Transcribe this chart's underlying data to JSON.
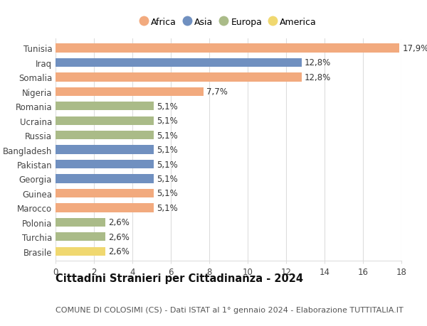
{
  "countries": [
    "Tunisia",
    "Iraq",
    "Somalia",
    "Nigeria",
    "Romania",
    "Ucraina",
    "Russia",
    "Bangladesh",
    "Pakistan",
    "Georgia",
    "Guinea",
    "Marocco",
    "Polonia",
    "Turchia",
    "Brasile"
  ],
  "values": [
    17.9,
    12.8,
    12.8,
    7.7,
    5.1,
    5.1,
    5.1,
    5.1,
    5.1,
    5.1,
    5.1,
    5.1,
    2.6,
    2.6,
    2.6
  ],
  "labels": [
    "17,9%",
    "12,8%",
    "12,8%",
    "7,7%",
    "5,1%",
    "5,1%",
    "5,1%",
    "5,1%",
    "5,1%",
    "5,1%",
    "5,1%",
    "5,1%",
    "2,6%",
    "2,6%",
    "2,6%"
  ],
  "continents": [
    "Africa",
    "Asia",
    "Africa",
    "Africa",
    "Europa",
    "Europa",
    "Europa",
    "Asia",
    "Asia",
    "Asia",
    "Africa",
    "Africa",
    "Europa",
    "Europa",
    "America"
  ],
  "colors": {
    "Africa": "#F2AA7E",
    "Asia": "#7090C0",
    "Europa": "#AABB88",
    "America": "#F0D870"
  },
  "legend_order": [
    "Africa",
    "Asia",
    "Europa",
    "America"
  ],
  "title": "Cittadini Stranieri per Cittadinanza - 2024",
  "subtitle": "COMUNE DI COLOSIMI (CS) - Dati ISTAT al 1° gennaio 2024 - Elaborazione TUTTITALIA.IT",
  "xlim": [
    0,
    18
  ],
  "xticks": [
    0,
    2,
    4,
    6,
    8,
    10,
    12,
    14,
    16,
    18
  ],
  "background_color": "#ffffff",
  "grid_color": "#dddddd",
  "bar_height": 0.6,
  "label_fontsize": 8.5,
  "tick_fontsize": 8.5,
  "country_fontsize": 8.5,
  "title_fontsize": 10.5,
  "subtitle_fontsize": 8.0
}
